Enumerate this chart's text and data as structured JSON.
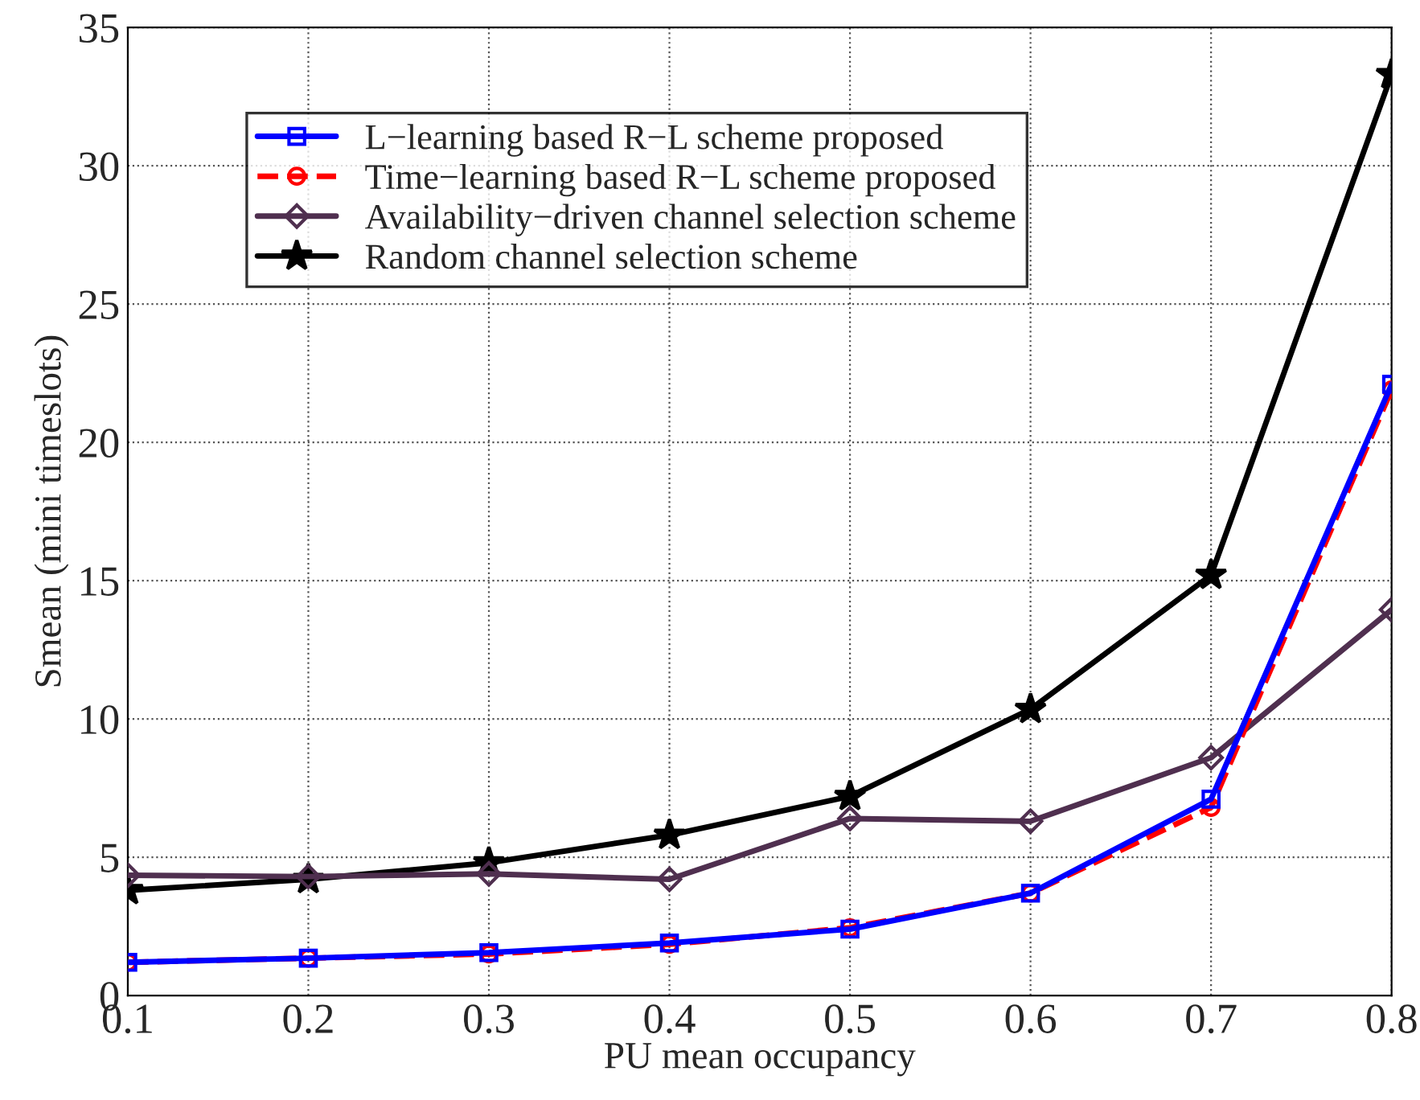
{
  "chart_data": {
    "type": "line",
    "xlabel": "PU mean occupancy",
    "ylabel": "Smean (mini timeslots)",
    "x": [
      0.1,
      0.2,
      0.3,
      0.4,
      0.5,
      0.6,
      0.7,
      0.8
    ],
    "series": [
      {
        "name": "L−learning based R−L scheme proposed",
        "color": "#0000ff",
        "marker": "square",
        "line_style": "solid",
        "values": [
          1.2,
          1.35,
          1.55,
          1.9,
          2.4,
          3.7,
          7.1,
          22.1
        ]
      },
      {
        "name": "Time−learning based R−L scheme proposed",
        "color": "#ff0000",
        "marker": "circle",
        "line_style": "dashed",
        "values": [
          1.2,
          1.35,
          1.5,
          1.85,
          2.45,
          3.7,
          6.8,
          21.9
        ]
      },
      {
        "name": "Availability−driven channel selection scheme",
        "color": "#4f2f4f",
        "marker": "diamond",
        "line_style": "solid",
        "values": [
          4.35,
          4.3,
          4.4,
          4.2,
          6.4,
          6.3,
          8.6,
          13.95
        ]
      },
      {
        "name": "Random channel selection scheme",
        "color": "#000000",
        "marker": "star",
        "line_style": "solid",
        "values": [
          3.8,
          4.2,
          4.8,
          5.8,
          7.2,
          10.35,
          15.2,
          33.3
        ]
      }
    ],
    "xlim": [
      0.1,
      0.8
    ],
    "xticks": [
      0.1,
      0.2,
      0.3,
      0.4,
      0.5,
      0.6,
      0.7,
      0.8
    ],
    "ylim": [
      0,
      35
    ],
    "yticks": [
      0,
      5,
      10,
      15,
      20,
      25,
      30,
      35
    ],
    "grid": true,
    "legend": "top left"
  }
}
